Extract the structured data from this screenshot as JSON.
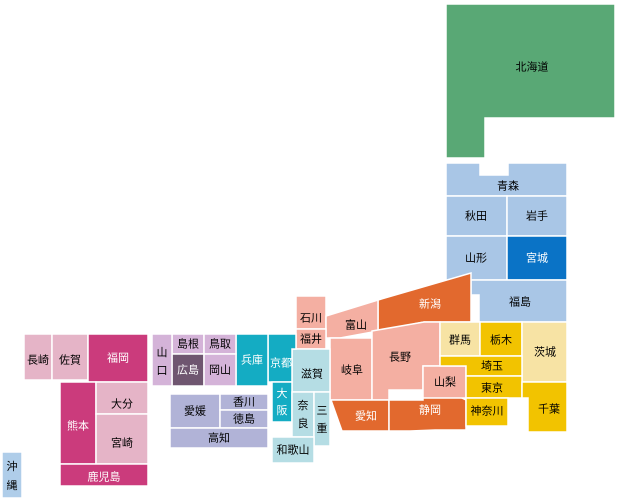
{
  "colors": {
    "hokkaido": "#59a875",
    "tohoku": "#a9c6e6",
    "tohoku_dark": "#0a73c6",
    "chubu": "#f4afa2",
    "chubu_dark": "#e2692e",
    "kanto_gold": "#f2c300",
    "kanto_light": "#f7e3a4",
    "kinki_teal": "#14acc3",
    "kinki_light": "#b5dde4",
    "chugoku": "#d4b3d8",
    "chugoku_dark": "#6f5670",
    "shikoku": "#b1b3d7",
    "kyushu": "#e5b4c7",
    "kyushu_dark": "#cb3b7c",
    "okinawa": "#afcde9"
  },
  "prefectures": {
    "hokkaido": "北海道",
    "aomori": "青森",
    "akita": "秋田",
    "iwate": "岩手",
    "yamagata": "山形",
    "miyagi": "宮城",
    "fukushima": "福島",
    "niigata": "新潟",
    "ishikawa": "石川",
    "toyama": "富山",
    "fukui": "福井",
    "nagano": "長野",
    "gifu": "岐阜",
    "gunma": "群馬",
    "tochigi": "栃木",
    "ibaraki": "茨城",
    "saitama": "埼玉",
    "yamanashi": "山梨",
    "tokyo": "東京",
    "chiba": "千葉",
    "kanagawa": "神奈川",
    "shizuoka": "静岡",
    "aichi": "愛知",
    "shiga": "滋賀",
    "kyoto": "京都",
    "osaka": "大阪",
    "hyogo": "兵庫",
    "nara": "奈良",
    "mie": "三重",
    "wakayama": "和歌山",
    "tottori": "鳥取",
    "shimane": "島根",
    "okayama": "岡山",
    "hiroshima": "広島",
    "yamaguchi": "山口",
    "kagawa": "香川",
    "ehime": "愛媛",
    "tokushima": "徳島",
    "kochi": "高知",
    "fukuoka": "福岡",
    "saga": "佐賀",
    "nagasaki": "長崎",
    "oita": "大分",
    "kumamoto": "熊本",
    "miyazaki": "宮崎",
    "kagoshima": "鹿児島",
    "okinawa": "沖縄"
  }
}
